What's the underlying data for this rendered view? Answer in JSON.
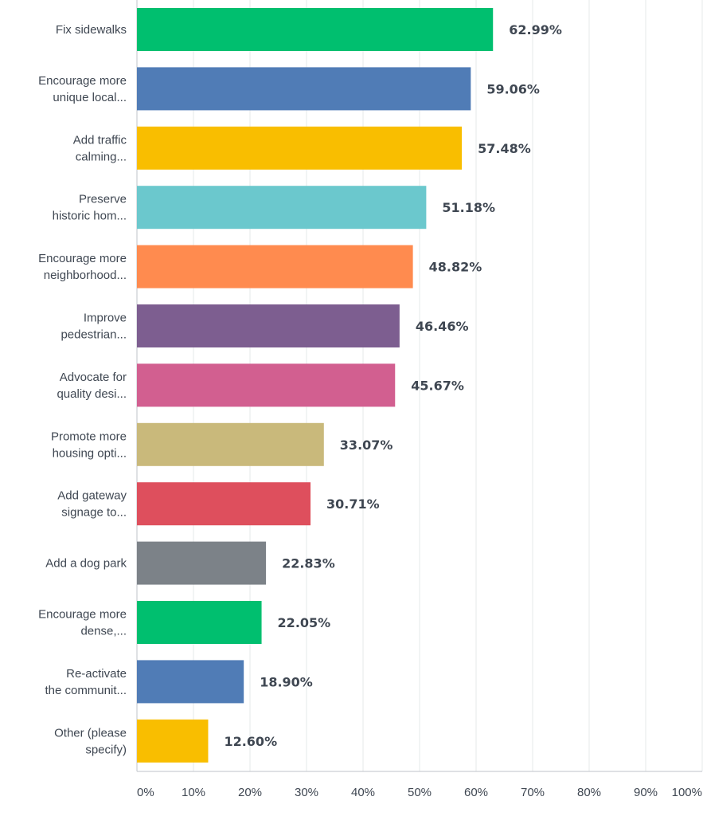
{
  "chart_data": {
    "type": "bar",
    "orientation": "horizontal",
    "categories": [
      [
        "Fix sidewalks"
      ],
      [
        "Encourage more",
        "unique local..."
      ],
      [
        "Add traffic",
        "calming..."
      ],
      [
        "Preserve",
        "historic hom..."
      ],
      [
        "Encourage more",
        "neighborhood..."
      ],
      [
        "Improve",
        "pedestrian..."
      ],
      [
        "Advocate for",
        "quality desi..."
      ],
      [
        "Promote more",
        "housing opti..."
      ],
      [
        "Add gateway",
        "signage to..."
      ],
      [
        "Add a dog park"
      ],
      [
        "Encourage more",
        "dense,..."
      ],
      [
        "Re-activate",
        "the communit..."
      ],
      [
        "Other (please",
        "specify)"
      ]
    ],
    "values": [
      62.99,
      59.06,
      57.48,
      51.18,
      48.82,
      46.46,
      45.67,
      33.07,
      30.71,
      22.83,
      22.05,
      18.9,
      12.6
    ],
    "value_labels": [
      "62.99%",
      "59.06%",
      "57.48%",
      "51.18%",
      "48.82%",
      "46.46%",
      "45.67%",
      "33.07%",
      "30.71%",
      "22.83%",
      "22.05%",
      "18.90%",
      "12.60%"
    ],
    "colors": [
      "#00bf6f",
      "#507cb6",
      "#f9be00",
      "#6bc8cd",
      "#ff8b4f",
      "#7d5e90",
      "#d25f90",
      "#c9b97b",
      "#de4f5d",
      "#7c8288",
      "#00bf6f",
      "#507cb6",
      "#f9be00"
    ],
    "xlim": [
      0,
      100
    ],
    "xticks": [
      "0%",
      "10%",
      "20%",
      "30%",
      "40%",
      "50%",
      "60%",
      "70%",
      "80%",
      "90%",
      "100%"
    ],
    "grid": true,
    "title": "",
    "xlabel": "",
    "ylabel": ""
  }
}
